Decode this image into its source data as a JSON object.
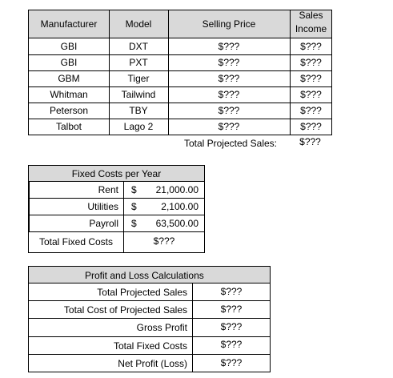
{
  "projected_sales_table": {
    "headers": {
      "manufacturer": "Manufacturer",
      "model": "Model",
      "selling_price": "Selling Price",
      "sales_income_line1": "Sales",
      "sales_income_line2": "Income"
    },
    "rows": [
      {
        "manufacturer": "GBI",
        "model": "DXT",
        "price": "$???",
        "income": "$???"
      },
      {
        "manufacturer": "GBI",
        "model": "PXT",
        "price": "$???",
        "income": "$???"
      },
      {
        "manufacturer": "GBM",
        "model": "Tiger",
        "price": "$???",
        "income": "$???"
      },
      {
        "manufacturer": "Whitman",
        "model": "Tailwind",
        "price": "$???",
        "income": "$???"
      },
      {
        "manufacturer": "Peterson",
        "model": "TBY",
        "price": "$???",
        "income": "$???"
      },
      {
        "manufacturer": "Talbot",
        "model": "Lago 2",
        "price": "$???",
        "income": "$???"
      }
    ],
    "total_label": "Total Projected Sales:",
    "total_value": "$???"
  },
  "fixed_costs": {
    "title": "Fixed Costs per Year",
    "items": [
      {
        "label": "Rent",
        "currency": "$",
        "amount": "21,000.00"
      },
      {
        "label": "Utilities",
        "currency": "$",
        "amount": "2,100.00"
      },
      {
        "label": "Payroll",
        "currency": "$",
        "amount": "63,500.00"
      }
    ],
    "total_label": "Total Fixed Costs",
    "total_value": "$???"
  },
  "profit_loss": {
    "title": "Profit and Loss Calculations",
    "items": [
      {
        "label": "Total Projected Sales",
        "value": "$???"
      },
      {
        "label": "Total Cost of Projected Sales",
        "value": "$???"
      },
      {
        "label": "Gross Profit",
        "value": "$???"
      },
      {
        "label": "Total Fixed Costs",
        "value": "$???"
      },
      {
        "label": "Net Profit (Loss)",
        "value": "$???"
      }
    ]
  }
}
